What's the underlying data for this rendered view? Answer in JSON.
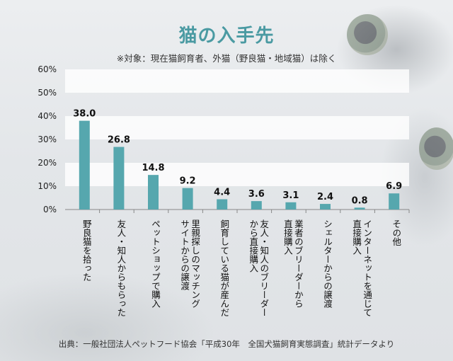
{
  "title": "猫の入手先",
  "subtitle": "※対象：現在猫飼育者、外猫（野良猫・地域猫）は除く",
  "footer": "出典：一般社団法人ペットフード協会「平成30年　全国犬猫飼育実態調査」統計データより",
  "colors": {
    "bar": "#56a7ae",
    "title": "#4a9aa2",
    "grid_band": "#ffffff"
  },
  "chart_data": {
    "type": "bar",
    "title": "猫の入手先",
    "ylim": [
      0,
      60
    ],
    "yticks": [
      "0%",
      "10%",
      "20%",
      "30%",
      "40%",
      "50%",
      "60%"
    ],
    "categories": [
      [
        "野良猫を拾った"
      ],
      [
        "友人・知人からもらった"
      ],
      [
        "ペットショップで購入"
      ],
      [
        "里親探しのマッチング",
        "サイトからの譲渡"
      ],
      [
        "飼育している猫が産んだ"
      ],
      [
        "友人・知人のブリーダー",
        "から直接購入"
      ],
      [
        "業者のブリーダーから",
        "直接購入"
      ],
      [
        "シェルターからの譲渡"
      ],
      [
        "インターネットを通じて",
        "直接購入"
      ],
      [
        "その他"
      ]
    ],
    "values": [
      38.0,
      26.8,
      14.8,
      9.2,
      4.4,
      3.6,
      3.1,
      2.4,
      0.8,
      6.9
    ],
    "value_labels": [
      "38.0",
      "26.8",
      "14.8",
      "9.2",
      "4.4",
      "3.6",
      "3.1",
      "2.4",
      "0.8",
      "6.9"
    ]
  }
}
